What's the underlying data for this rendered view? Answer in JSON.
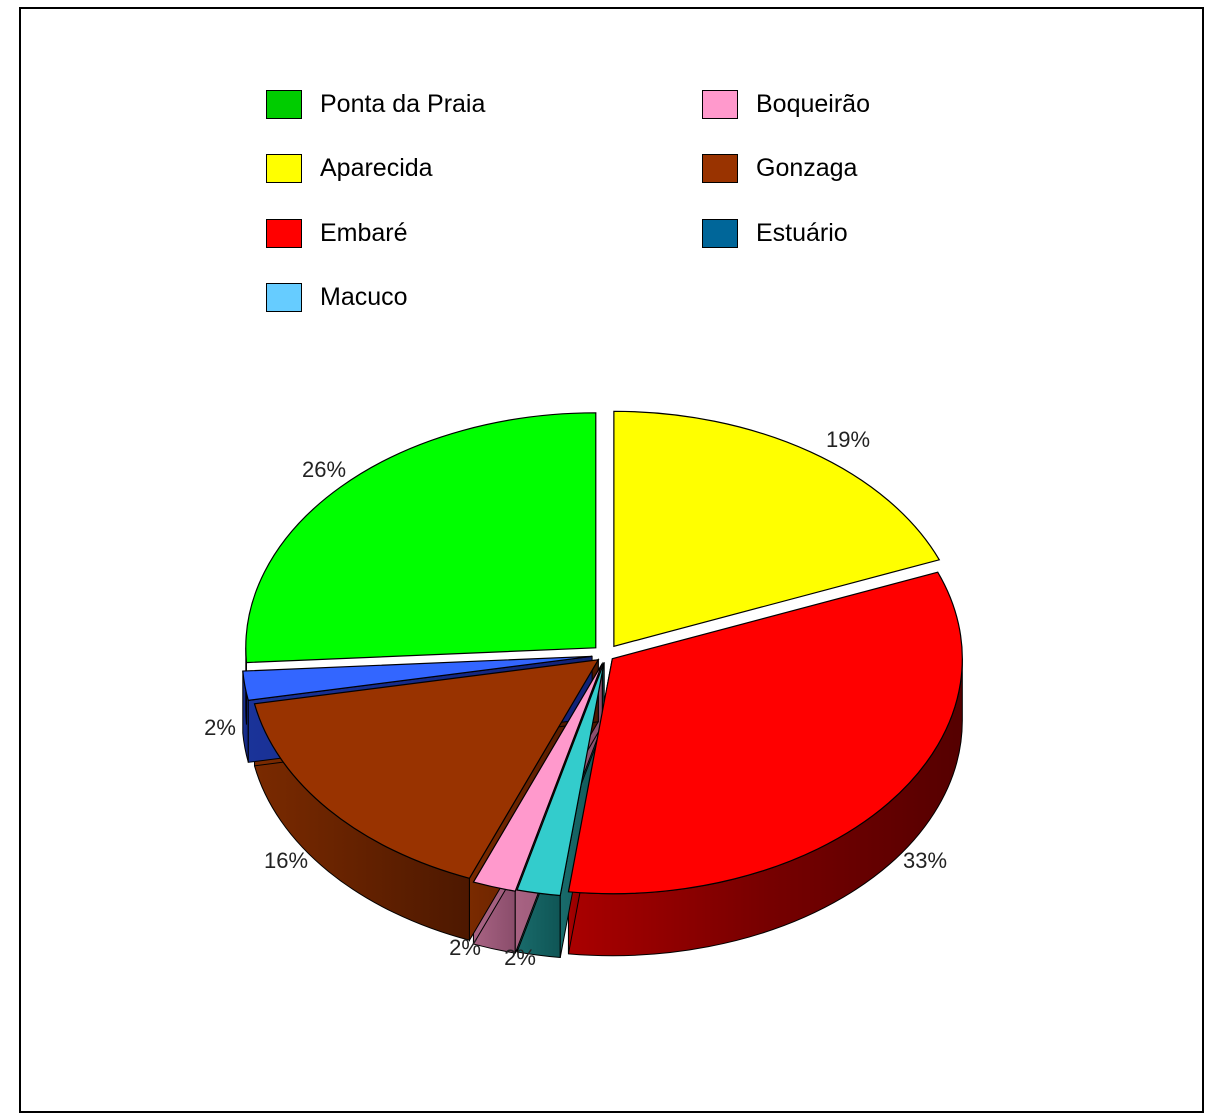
{
  "chart_data": {
    "type": "pie",
    "title": "",
    "legend_placement": "top",
    "series": [
      {
        "name": "Ponta da Praia",
        "color": "#00cc00",
        "pie_color": "#00ff00",
        "value": 26,
        "label": "26%"
      },
      {
        "name": "Aparecida",
        "color": "#ffff00",
        "pie_color": "#ffff00",
        "value": 19,
        "label": "19%"
      },
      {
        "name": "Embaré",
        "color": "#ff0000",
        "pie_color": "#ff0000",
        "value": 33,
        "label": "33%"
      },
      {
        "name": "Macuco",
        "color": "#66ccff",
        "pie_color": "#33cccc",
        "value": 2,
        "label": "2%"
      },
      {
        "name": "Boqueirão",
        "color": "#ff99cc",
        "pie_color": "#ff99cc",
        "value": 2,
        "label": "2%"
      },
      {
        "name": "Gonzaga",
        "color": "#993300",
        "pie_color": "#993300",
        "value": 16,
        "label": "16%"
      },
      {
        "name": "Estuário",
        "color": "#006699",
        "pie_color": "#3366ff",
        "value": 2,
        "label": "2%"
      }
    ]
  }
}
